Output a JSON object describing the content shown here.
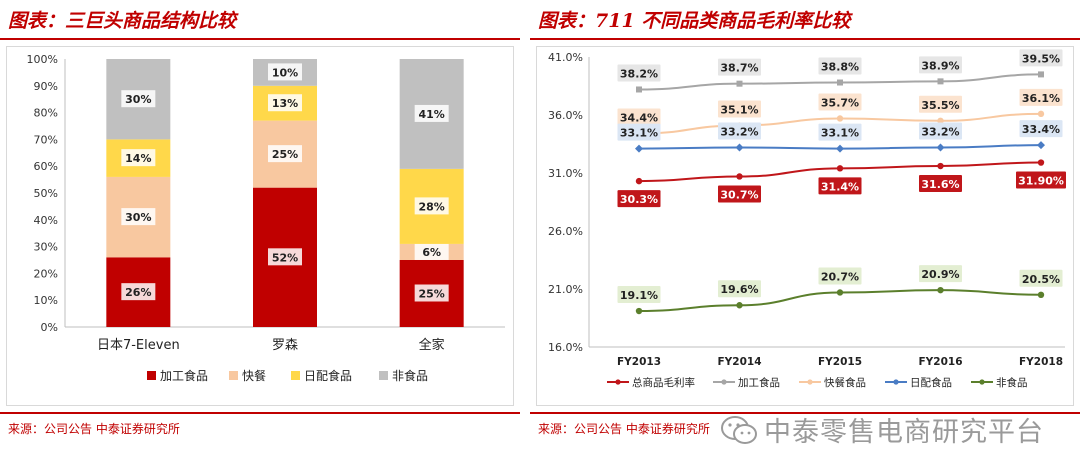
{
  "left": {
    "title": "图表：三巨头商品结构比较",
    "source": "来源：公司公告 中泰证券研究所"
  },
  "right": {
    "title": "图表：711 不同品类商品毛利率比较",
    "source": "来源：公司公告 中泰证券研究所"
  },
  "watermark": "中泰零售电商研究平台",
  "colors": {
    "accent_red": "#c00000",
    "bar_processed": "#c00000",
    "bar_fastfood": "#f8c8a0",
    "bar_delivery": "#ffd84a",
    "bar_nonfood": "#c0c0c0",
    "line_total": "#c0161a",
    "line_processed": "#a6a6a6",
    "line_fastfood": "#f8c8a0",
    "line_delivery": "#4a7cc4",
    "line_nonfood": "#5b7f2c"
  },
  "chart_data": [
    {
      "type": "bar",
      "stacked": true,
      "categories": [
        "日本7-Eleven",
        "罗森",
        "全家"
      ],
      "series": [
        {
          "name": "加工食品",
          "values": [
            26,
            52,
            25
          ]
        },
        {
          "name": "快餐",
          "values": [
            30,
            25,
            6
          ]
        },
        {
          "name": "日配食品",
          "values": [
            14,
            13,
            28
          ]
        },
        {
          "name": "非食品",
          "values": [
            30,
            10,
            41
          ]
        }
      ],
      "value_labels": [
        [
          "26%",
          "52%",
          "25%"
        ],
        [
          "30%",
          "25%",
          "6%"
        ],
        [
          "14%",
          "13%",
          "28%"
        ],
        [
          "30%",
          "10%",
          "41%"
        ]
      ],
      "ylim": [
        0,
        100
      ],
      "yticks": [
        "0%",
        "10%",
        "20%",
        "30%",
        "40%",
        "50%",
        "60%",
        "70%",
        "80%",
        "90%",
        "100%"
      ],
      "legend": "bottom",
      "grid": false
    },
    {
      "type": "line",
      "x": [
        "FY2013",
        "FY2014",
        "FY2015",
        "FY2016",
        "FY2018"
      ],
      "series": [
        {
          "name": "总商品毛利率",
          "values": [
            30.3,
            30.7,
            31.4,
            31.6,
            31.9
          ],
          "labels": [
            "30.3%",
            "30.7%",
            "31.4%",
            "31.6%",
            "31.90%"
          ]
        },
        {
          "name": "加工食品",
          "values": [
            38.2,
            38.7,
            38.8,
            38.9,
            39.5
          ],
          "labels": [
            "38.2%",
            "38.7%",
            "38.8%",
            "38.9%",
            "39.5%"
          ]
        },
        {
          "name": "快餐食品",
          "values": [
            34.4,
            35.1,
            35.7,
            35.5,
            36.1
          ],
          "labels": [
            "34.4%",
            "35.1%",
            "35.7%",
            "35.5%",
            "36.1%"
          ]
        },
        {
          "name": "日配食品",
          "values": [
            33.1,
            33.2,
            33.1,
            33.2,
            33.4
          ],
          "labels": [
            "33.1%",
            "33.2%",
            "33.1%",
            "33.2%",
            "33.4%"
          ]
        },
        {
          "name": "非食品",
          "values": [
            19.1,
            19.6,
            20.7,
            20.9,
            20.5
          ],
          "labels": [
            "19.1%",
            "19.6%",
            "20.7%",
            "20.9%",
            "20.5%"
          ]
        }
      ],
      "ylim": [
        16,
        41
      ],
      "yticks": [
        "16.0%",
        "21.0%",
        "26.0%",
        "31.0%",
        "36.0%",
        "41.0%"
      ],
      "legend": "bottom",
      "grid": false
    }
  ]
}
